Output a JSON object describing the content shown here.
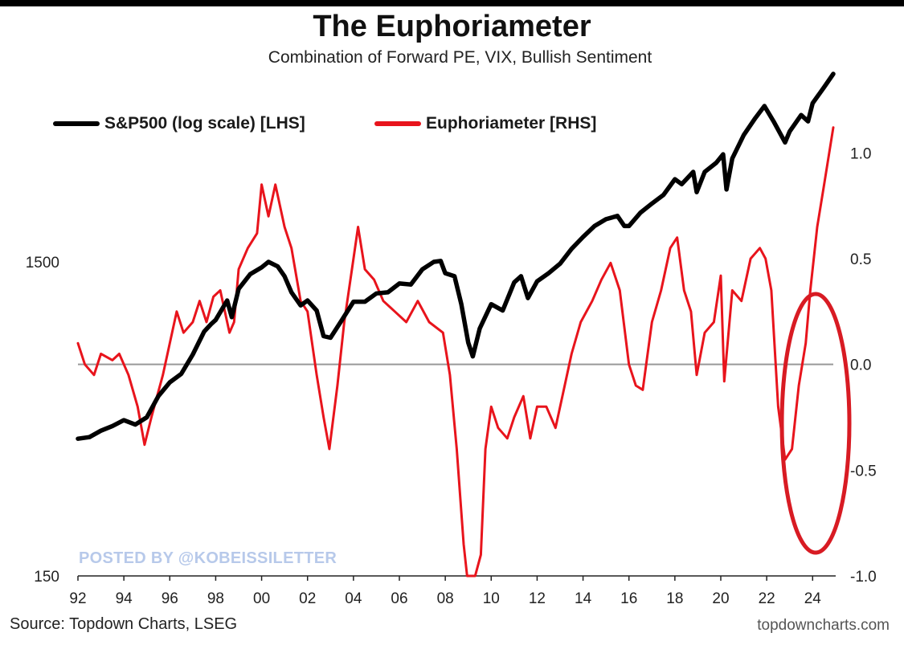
{
  "title": "The Euphoriameter",
  "subtitle": "Combination of Forward PE, VIX, Bullish Sentiment",
  "legend": {
    "sp500_label": "S&P500 (log scale) [LHS]",
    "euphoria_label": "Euphoriameter [RHS]"
  },
  "watermark": "POSTED BY @KOBEISSILETTER",
  "source": "Source: Topdown Charts, LSEG",
  "credit": "topdowncharts.com",
  "colors": {
    "sp500": "#000000",
    "euphoria": "#e8141c",
    "zero_line": "#999999",
    "highlight": "#d81b23"
  },
  "chart_data": {
    "type": "line",
    "title": "The Euphoriameter",
    "x_tick_labels": [
      "92",
      "94",
      "96",
      "98",
      "00",
      "02",
      "04",
      "06",
      "08",
      "10",
      "12",
      "14",
      "16",
      "18",
      "20",
      "22",
      "24"
    ],
    "x_ticks": [
      1992,
      1994,
      1996,
      1998,
      2000,
      2002,
      2004,
      2006,
      2008,
      2010,
      2012,
      2014,
      2016,
      2018,
      2020,
      2022,
      2024
    ],
    "xlim": [
      1992,
      2024.9
    ],
    "left_axis": {
      "scale": "log",
      "ticks": [
        150,
        1500
      ],
      "tick_labels": [
        "150",
        "1500"
      ],
      "ylim": [
        150,
        6200
      ]
    },
    "right_axis": {
      "ticks": [
        -1.0,
        -0.5,
        0.0,
        0.5,
        1.0
      ],
      "tick_labels": [
        "-1.0",
        "-0.5",
        "0.0",
        "0.5",
        "1.0"
      ],
      "ylim": [
        -1.0,
        1.4
      ]
    },
    "series": [
      {
        "name": "S&P500 (log scale) [LHS]",
        "axis": "left",
        "points": [
          [
            1992.0,
            410
          ],
          [
            1992.5,
            415
          ],
          [
            1993.0,
            435
          ],
          [
            1993.5,
            450
          ],
          [
            1994.0,
            470
          ],
          [
            1994.5,
            455
          ],
          [
            1995.0,
            480
          ],
          [
            1995.5,
            560
          ],
          [
            1996.0,
            620
          ],
          [
            1996.5,
            660
          ],
          [
            1997.0,
            760
          ],
          [
            1997.5,
            900
          ],
          [
            1997.8,
            950
          ],
          [
            1998.0,
            980
          ],
          [
            1998.5,
            1130
          ],
          [
            1998.7,
            1000
          ],
          [
            1999.0,
            1230
          ],
          [
            1999.5,
            1370
          ],
          [
            2000.0,
            1440
          ],
          [
            2000.3,
            1500
          ],
          [
            2000.7,
            1450
          ],
          [
            2001.0,
            1350
          ],
          [
            2001.3,
            1200
          ],
          [
            2001.7,
            1090
          ],
          [
            2002.0,
            1130
          ],
          [
            2002.4,
            1050
          ],
          [
            2002.7,
            870
          ],
          [
            2003.0,
            860
          ],
          [
            2003.5,
            980
          ],
          [
            2004.0,
            1120
          ],
          [
            2004.5,
            1120
          ],
          [
            2005.0,
            1190
          ],
          [
            2005.5,
            1200
          ],
          [
            2006.0,
            1280
          ],
          [
            2006.5,
            1270
          ],
          [
            2007.0,
            1420
          ],
          [
            2007.5,
            1500
          ],
          [
            2007.8,
            1510
          ],
          [
            2008.0,
            1380
          ],
          [
            2008.4,
            1350
          ],
          [
            2008.7,
            1100
          ],
          [
            2009.0,
            830
          ],
          [
            2009.2,
            750
          ],
          [
            2009.5,
            920
          ],
          [
            2010.0,
            1100
          ],
          [
            2010.5,
            1050
          ],
          [
            2011.0,
            1290
          ],
          [
            2011.3,
            1350
          ],
          [
            2011.6,
            1150
          ],
          [
            2012.0,
            1300
          ],
          [
            2012.5,
            1380
          ],
          [
            2013.0,
            1480
          ],
          [
            2013.5,
            1650
          ],
          [
            2014.0,
            1800
          ],
          [
            2014.5,
            1950
          ],
          [
            2015.0,
            2050
          ],
          [
            2015.5,
            2100
          ],
          [
            2015.8,
            1950
          ],
          [
            2016.0,
            1950
          ],
          [
            2016.5,
            2150
          ],
          [
            2017.0,
            2300
          ],
          [
            2017.5,
            2450
          ],
          [
            2018.0,
            2750
          ],
          [
            2018.3,
            2650
          ],
          [
            2018.8,
            2900
          ],
          [
            2018.95,
            2500
          ],
          [
            2019.3,
            2900
          ],
          [
            2019.8,
            3100
          ],
          [
            2020.1,
            3300
          ],
          [
            2020.25,
            2550
          ],
          [
            2020.5,
            3200
          ],
          [
            2021.0,
            3800
          ],
          [
            2021.5,
            4300
          ],
          [
            2021.9,
            4700
          ],
          [
            2022.3,
            4200
          ],
          [
            2022.8,
            3600
          ],
          [
            2023.0,
            3900
          ],
          [
            2023.5,
            4400
          ],
          [
            2023.8,
            4200
          ],
          [
            2024.0,
            4800
          ],
          [
            2024.5,
            5400
          ],
          [
            2024.9,
            5950
          ]
        ]
      },
      {
        "name": "Euphoriameter [RHS]",
        "axis": "right",
        "points": [
          [
            1992.0,
            0.1
          ],
          [
            1992.3,
            0.0
          ],
          [
            1992.7,
            -0.05
          ],
          [
            1993.0,
            0.05
          ],
          [
            1993.5,
            0.02
          ],
          [
            1993.8,
            0.05
          ],
          [
            1994.2,
            -0.05
          ],
          [
            1994.6,
            -0.2
          ],
          [
            1994.9,
            -0.38
          ],
          [
            1995.2,
            -0.25
          ],
          [
            1995.7,
            -0.05
          ],
          [
            1996.0,
            0.1
          ],
          [
            1996.3,
            0.25
          ],
          [
            1996.6,
            0.15
          ],
          [
            1997.0,
            0.2
          ],
          [
            1997.3,
            0.3
          ],
          [
            1997.6,
            0.2
          ],
          [
            1997.9,
            0.32
          ],
          [
            1998.2,
            0.35
          ],
          [
            1998.6,
            0.15
          ],
          [
            1998.8,
            0.2
          ],
          [
            1999.0,
            0.45
          ],
          [
            1999.4,
            0.55
          ],
          [
            1999.8,
            0.62
          ],
          [
            2000.0,
            0.85
          ],
          [
            2000.3,
            0.7
          ],
          [
            2000.6,
            0.85
          ],
          [
            2001.0,
            0.65
          ],
          [
            2001.3,
            0.55
          ],
          [
            2001.7,
            0.3
          ],
          [
            2002.0,
            0.25
          ],
          [
            2002.4,
            -0.05
          ],
          [
            2002.7,
            -0.25
          ],
          [
            2002.95,
            -0.4
          ],
          [
            2003.3,
            -0.1
          ],
          [
            2003.6,
            0.2
          ],
          [
            2004.0,
            0.5
          ],
          [
            2004.2,
            0.65
          ],
          [
            2004.5,
            0.45
          ],
          [
            2004.9,
            0.4
          ],
          [
            2005.3,
            0.3
          ],
          [
            2005.8,
            0.25
          ],
          [
            2006.3,
            0.2
          ],
          [
            2006.8,
            0.3
          ],
          [
            2007.3,
            0.2
          ],
          [
            2007.9,
            0.15
          ],
          [
            2008.2,
            -0.05
          ],
          [
            2008.5,
            -0.4
          ],
          [
            2008.8,
            -0.85
          ],
          [
            2008.95,
            -1.0
          ],
          [
            2009.3,
            -1.0
          ],
          [
            2009.55,
            -0.9
          ],
          [
            2009.75,
            -0.4
          ],
          [
            2010.0,
            -0.2
          ],
          [
            2010.3,
            -0.3
          ],
          [
            2010.7,
            -0.35
          ],
          [
            2011.0,
            -0.25
          ],
          [
            2011.4,
            -0.15
          ],
          [
            2011.7,
            -0.35
          ],
          [
            2012.0,
            -0.2
          ],
          [
            2012.4,
            -0.2
          ],
          [
            2012.8,
            -0.3
          ],
          [
            2013.1,
            -0.15
          ],
          [
            2013.5,
            0.05
          ],
          [
            2013.9,
            0.2
          ],
          [
            2014.4,
            0.3
          ],
          [
            2014.8,
            0.4
          ],
          [
            2015.2,
            0.48
          ],
          [
            2015.6,
            0.35
          ],
          [
            2016.0,
            0.0
          ],
          [
            2016.3,
            -0.1
          ],
          [
            2016.6,
            -0.12
          ],
          [
            2017.0,
            0.2
          ],
          [
            2017.4,
            0.35
          ],
          [
            2017.8,
            0.55
          ],
          [
            2018.1,
            0.6
          ],
          [
            2018.4,
            0.35
          ],
          [
            2018.7,
            0.25
          ],
          [
            2018.95,
            -0.05
          ],
          [
            2019.3,
            0.15
          ],
          [
            2019.7,
            0.2
          ],
          [
            2020.0,
            0.42
          ],
          [
            2020.15,
            -0.08
          ],
          [
            2020.5,
            0.35
          ],
          [
            2020.9,
            0.3
          ],
          [
            2021.3,
            0.5
          ],
          [
            2021.7,
            0.55
          ],
          [
            2021.95,
            0.5
          ],
          [
            2022.2,
            0.35
          ],
          [
            2022.5,
            -0.2
          ],
          [
            2022.8,
            -0.45
          ],
          [
            2023.1,
            -0.4
          ],
          [
            2023.4,
            -0.1
          ],
          [
            2023.7,
            0.1
          ],
          [
            2023.9,
            0.35
          ],
          [
            2024.2,
            0.65
          ],
          [
            2024.5,
            0.85
          ],
          [
            2024.9,
            1.12
          ]
        ]
      }
    ],
    "annotations": [
      "red ellipse highlighting the 2023-2024 surge of the Euphoriameter"
    ]
  }
}
